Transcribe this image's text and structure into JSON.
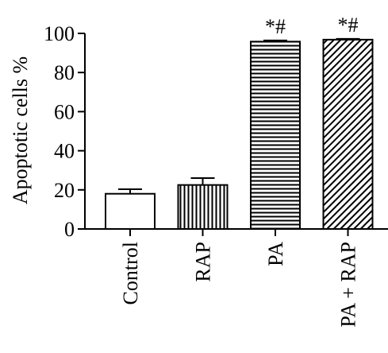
{
  "chart_data": {
    "type": "bar",
    "title": "",
    "xlabel": "",
    "ylabel": "Apoptotic cells %",
    "ylim": [
      0,
      100
    ],
    "yticks": [
      0,
      20,
      40,
      60,
      80,
      100
    ],
    "grid": false,
    "categories": [
      "Control",
      "RAP",
      "PA",
      "PA + RAP"
    ],
    "values": [
      18,
      22.5,
      95.8,
      96.8
    ],
    "errors": [
      2.3,
      3.5,
      0.6,
      0.4
    ],
    "annotations": [
      "",
      "",
      "*#",
      "*#"
    ],
    "fill_patterns": [
      "none",
      "vertical-lines",
      "horizontal-lines",
      "diagonal-lines"
    ]
  }
}
